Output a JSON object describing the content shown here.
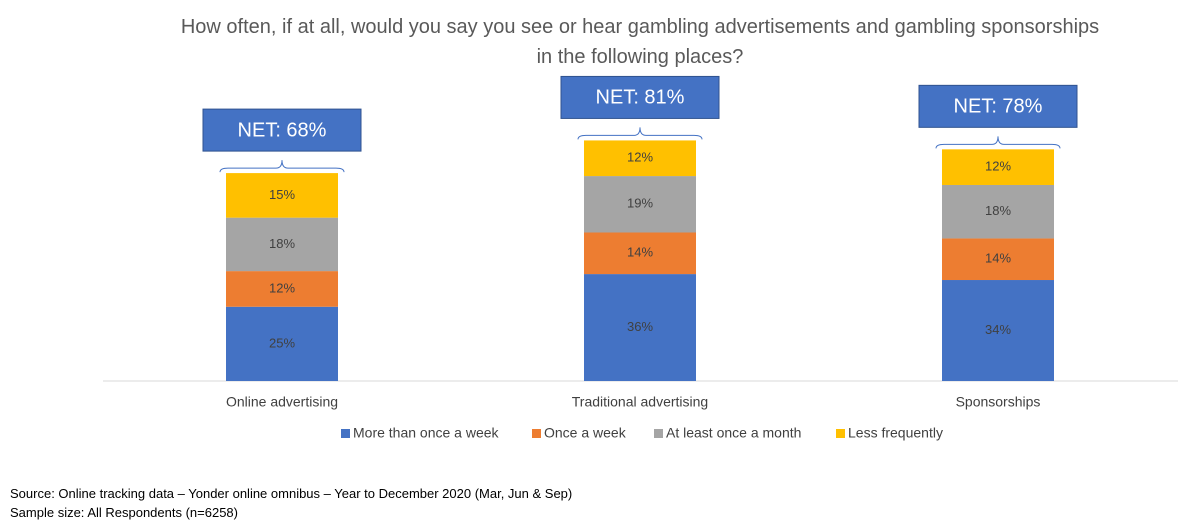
{
  "chart_data": {
    "type": "stacked_bar",
    "title": "How often, if at all, would you say you see or hear gambling advertisements and gambling sponsorships in the following places?",
    "categories": [
      "Online advertising",
      "Traditional advertising",
      "Sponsorships"
    ],
    "series": [
      {
        "name": "More than once a week",
        "color": "#4472c4",
        "values": [
          25,
          36,
          34
        ],
        "value_labels": [
          "25%",
          "36%",
          "34%"
        ]
      },
      {
        "name": "Once a week",
        "color": "#ed7d31",
        "values": [
          12,
          14,
          14
        ],
        "value_labels": [
          "12%",
          "14%",
          "14%"
        ]
      },
      {
        "name": "At least once a month",
        "color": "#a5a5a5",
        "values": [
          18,
          19,
          18
        ],
        "value_labels": [
          "18%",
          "19%",
          "18%"
        ]
      },
      {
        "name": "Less frequently",
        "color": "#ffc000",
        "values": [
          15,
          12,
          12
        ],
        "value_labels": [
          "15%",
          "12%",
          "12%"
        ]
      }
    ],
    "annotations": [
      "NET: 68%",
      "NET: 81%",
      "NET: 78%"
    ],
    "legend": "bottom",
    "notes": [
      "Source: Online tracking data – Yonder online omnibus – Year to December 2020  (Mar, Jun & Sep)",
      "Sample size:  All Respondents (n=6258)"
    ]
  }
}
